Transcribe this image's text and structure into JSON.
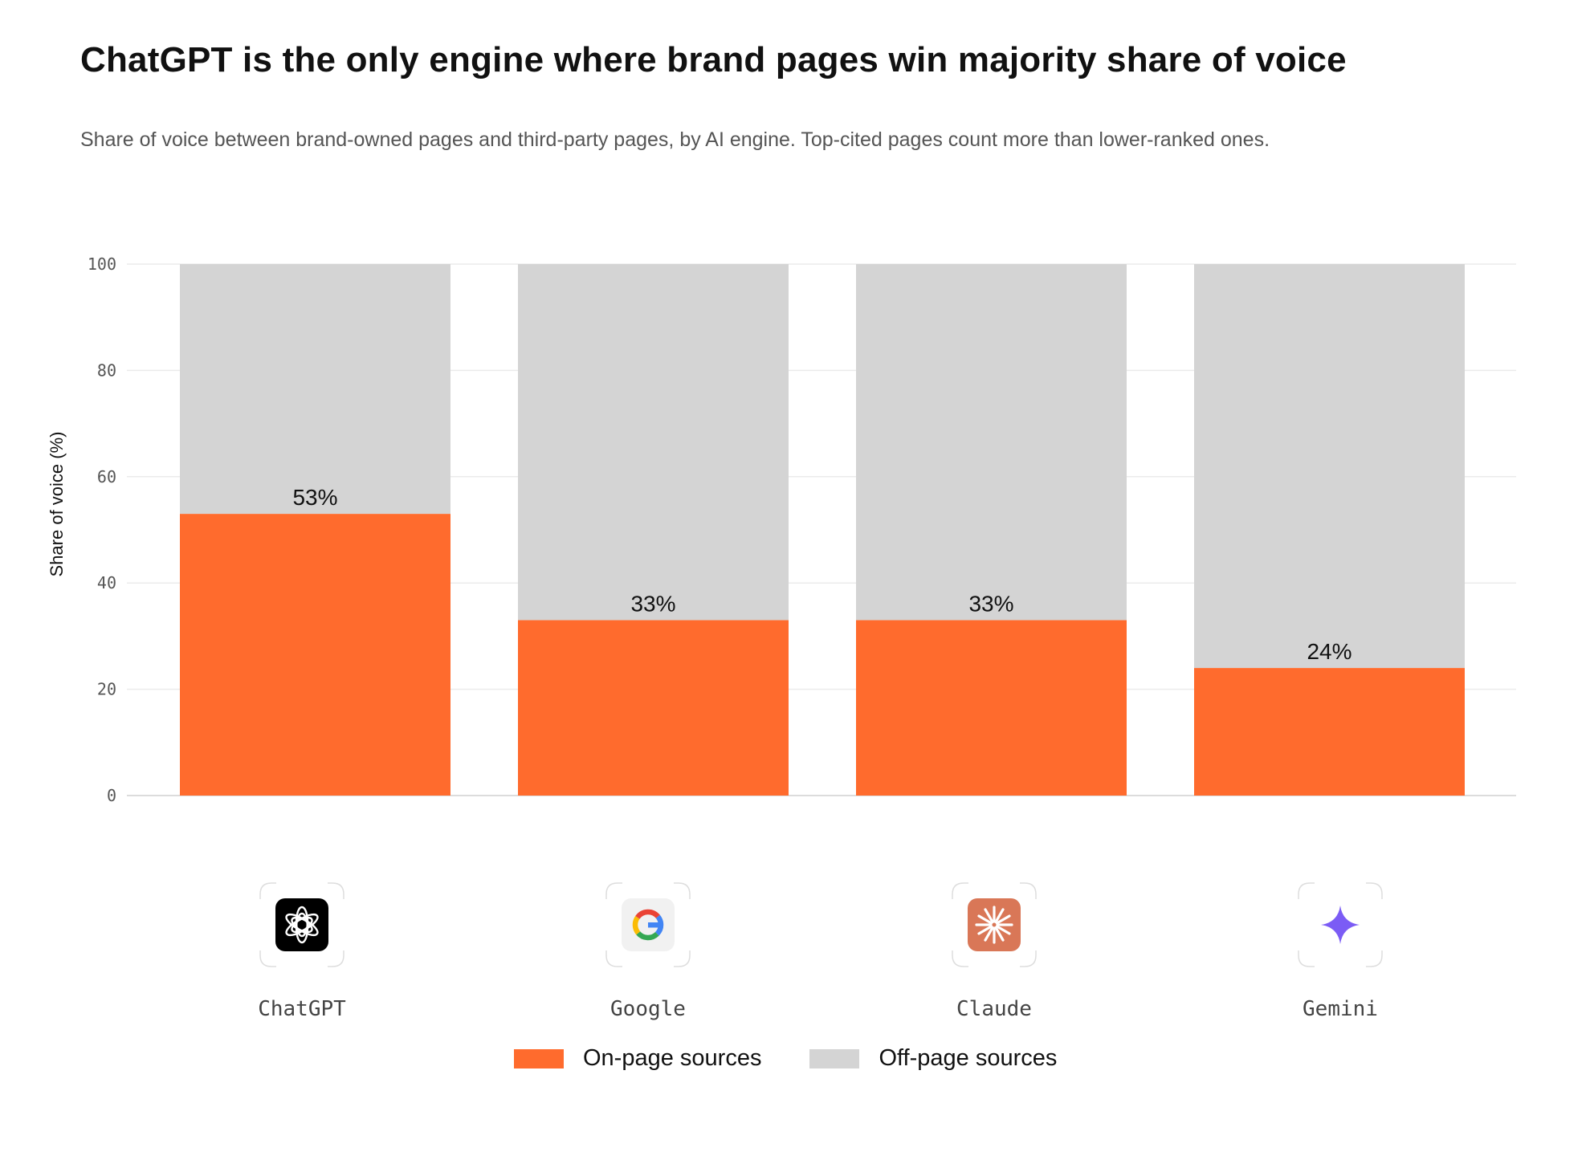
{
  "title": "ChatGPT is the only engine where brand pages win majority share of voice",
  "subtitle": "Share of voice between brand-owned pages and third-party pages, by AI engine. Top-cited pages count more than lower-ranked ones.",
  "colors": {
    "on_page": "#FF6B2D",
    "off_page": "#D4D4D4",
    "grid": "#EBEBEB",
    "axis": "#D0D0D0"
  },
  "engines": [
    {
      "name": "ChatGPT",
      "icon": "chatgpt-logo-icon"
    },
    {
      "name": "Google",
      "icon": "google-logo-icon"
    },
    {
      "name": "Claude",
      "icon": "claude-logo-icon"
    },
    {
      "name": "Gemini",
      "icon": "gemini-logo-icon"
    }
  ],
  "legend": {
    "on_page": "On-page sources",
    "off_page": "Off-page sources"
  },
  "chart_data": {
    "type": "bar",
    "stacked": true,
    "categories": [
      "ChatGPT",
      "Google",
      "Claude",
      "Gemini"
    ],
    "series": [
      {
        "name": "On-page sources",
        "values": [
          53,
          33,
          33,
          24
        ]
      },
      {
        "name": "Off-page sources",
        "values": [
          47,
          67,
          67,
          76
        ]
      }
    ],
    "data_labels": [
      "53%",
      "33%",
      "33%",
      "24%"
    ],
    "ylabel": "Share of voice (%)",
    "ylim": [
      0,
      100
    ],
    "yticks": [
      0,
      20,
      40,
      60,
      80,
      100
    ],
    "grid": true,
    "legend_position": "bottom"
  }
}
